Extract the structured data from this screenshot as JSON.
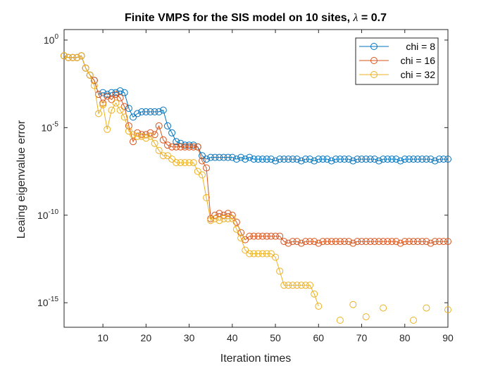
{
  "chart_data": {
    "type": "line",
    "title": "Finite VMPS for the SIS model on 10 sites, λ = 0.7",
    "title_parts": {
      "prefix": "Finite VMPS for the SIS model on 10 sites, ",
      "symbol": "λ",
      "suffix": " = 0.7"
    },
    "xlabel": "Iteration times",
    "ylabel": "Leaing eigenvalue error",
    "xlim": [
      1,
      90
    ],
    "ylim_log10": [
      -16.4,
      0.6
    ],
    "yscale": "log",
    "grid": false,
    "legend_position": "top-right",
    "xticks": [
      10,
      20,
      30,
      40,
      50,
      60,
      70,
      80,
      90
    ],
    "xtick_labels": [
      "10",
      "20",
      "30",
      "40",
      "50",
      "60",
      "70",
      "80",
      "90"
    ],
    "yticks_log10": [
      0,
      -5,
      -10,
      -15
    ],
    "ytick_labels": [
      {
        "base": "10",
        "exp": "0"
      },
      {
        "base": "10",
        "exp": "-5"
      },
      {
        "base": "10",
        "exp": "-10"
      },
      {
        "base": "10",
        "exp": "-15"
      }
    ],
    "series": [
      {
        "name": "chi = 8",
        "color": "#0072BD",
        "x": [
          1,
          2,
          3,
          4,
          5,
          6,
          7,
          8,
          9,
          10,
          11,
          12,
          13,
          14,
          15,
          16,
          17,
          18,
          19,
          20,
          21,
          22,
          23,
          24,
          25,
          26,
          27,
          28,
          29,
          30,
          31,
          32,
          33,
          34,
          35,
          36,
          37,
          38,
          39,
          40,
          41,
          42,
          43,
          44,
          45,
          46,
          47,
          48,
          49,
          50,
          51,
          52,
          53,
          54,
          55,
          56,
          57,
          58,
          59,
          60,
          61,
          62,
          63,
          64,
          65,
          66,
          67,
          68,
          69,
          70,
          71,
          72,
          73,
          74,
          75,
          76,
          77,
          78,
          79,
          80,
          81,
          82,
          83,
          84,
          85,
          86,
          87,
          88,
          89,
          90
        ],
        "log10_y": [
          -0.9,
          -1.0,
          -1.0,
          -1.0,
          -0.9,
          -1.6,
          -2.0,
          -2.3,
          -3.1,
          -3.0,
          -3.1,
          -3.0,
          -3.0,
          -2.9,
          -3.0,
          -3.9,
          -4.4,
          -4.2,
          -4.1,
          -4.1,
          -4.1,
          -4.1,
          -4.1,
          -4.0,
          -4.9,
          -5.3,
          -5.8,
          -5.9,
          -6.0,
          -6.0,
          -6.0,
          -6.1,
          -6.6,
          -6.8,
          -6.7,
          -6.7,
          -6.7,
          -6.7,
          -6.7,
          -6.7,
          -6.8,
          -6.7,
          -6.8,
          -6.7,
          -6.8,
          -6.8,
          -6.8,
          -6.8,
          -6.8,
          -6.9,
          -6.8,
          -6.8,
          -6.8,
          -6.8,
          -6.8,
          -6.9,
          -6.8,
          -6.8,
          -6.9,
          -6.8,
          -6.8,
          -6.8,
          -6.9,
          -6.8,
          -6.8,
          -6.8,
          -6.8,
          -6.9,
          -6.8,
          -6.8,
          -6.8,
          -6.8,
          -6.8,
          -6.9,
          -6.8,
          -6.8,
          -6.8,
          -6.8,
          -6.9,
          -6.8,
          -6.8,
          -6.8,
          -6.8,
          -6.8,
          -6.8,
          -6.8,
          -6.9,
          -6.8,
          -6.8,
          -6.8
        ]
      },
      {
        "name": "chi = 16",
        "color": "#D95319",
        "x": [
          1,
          2,
          3,
          4,
          5,
          6,
          7,
          8,
          9,
          10,
          11,
          12,
          13,
          14,
          15,
          16,
          17,
          18,
          19,
          20,
          21,
          22,
          23,
          24,
          25,
          26,
          27,
          28,
          29,
          30,
          31,
          32,
          33,
          34,
          35,
          36,
          37,
          38,
          39,
          40,
          41,
          42,
          43,
          44,
          45,
          46,
          47,
          48,
          49,
          50,
          51,
          52,
          53,
          54,
          55,
          56,
          57,
          58,
          59,
          60,
          61,
          62,
          63,
          64,
          65,
          66,
          67,
          68,
          69,
          70,
          71,
          72,
          73,
          74,
          75,
          76,
          77,
          78,
          79,
          80,
          81,
          82,
          83,
          84,
          85,
          86,
          87,
          88,
          89,
          90
        ],
        "log10_y": [
          -0.9,
          -1.0,
          -1.0,
          -1.0,
          -0.9,
          -1.6,
          -2.0,
          -2.3,
          -3.1,
          -3.6,
          -3.2,
          -3.4,
          -3.1,
          -3.3,
          -3.8,
          -4.9,
          -5.8,
          -5.3,
          -5.4,
          -5.4,
          -5.3,
          -5.4,
          -4.9,
          -5.7,
          -6.0,
          -6.1,
          -6.1,
          -6.1,
          -6.1,
          -6.1,
          -6.1,
          -6.1,
          -6.9,
          -7.3,
          -10.2,
          -10.0,
          -9.9,
          -10.0,
          -9.9,
          -10.0,
          -10.4,
          -11.0,
          -11.4,
          -11.2,
          -11.2,
          -11.2,
          -11.2,
          -11.2,
          -11.2,
          -11.2,
          -11.2,
          -11.5,
          -11.6,
          -11.5,
          -11.5,
          -11.6,
          -11.5,
          -11.5,
          -11.5,
          -11.6,
          -11.5,
          -11.5,
          -11.5,
          -11.5,
          -11.5,
          -11.5,
          -11.5,
          -11.6,
          -11.5,
          -11.5,
          -11.5,
          -11.5,
          -11.5,
          -11.5,
          -11.5,
          -11.5,
          -11.5,
          -11.5,
          -11.6,
          -11.5,
          -11.5,
          -11.5,
          -11.5,
          -11.5,
          -11.5,
          -11.6,
          -11.5,
          -11.5,
          -11.5,
          -11.5
        ]
      },
      {
        "name": "chi = 32",
        "color": "#EDB120",
        "x": [
          1,
          2,
          3,
          4,
          5,
          6,
          7,
          8,
          9,
          10,
          11,
          12,
          13,
          14,
          15,
          16,
          17,
          18,
          19,
          20,
          21,
          22,
          23,
          24,
          25,
          26,
          27,
          28,
          29,
          30,
          31,
          32,
          33,
          34,
          35,
          36,
          37,
          38,
          39,
          40,
          41,
          42,
          43,
          44,
          45,
          46,
          47,
          48,
          49,
          50,
          51,
          52,
          53,
          54,
          55,
          56,
          57,
          58,
          59,
          60,
          65,
          68,
          71,
          75,
          82,
          85,
          90
        ],
        "log10_y": [
          -0.9,
          -1.0,
          -1.0,
          -1.0,
          -0.9,
          -1.6,
          -2.0,
          -2.6,
          -4.2,
          -3.7,
          -5.1,
          -4.0,
          -3.6,
          -4.0,
          -4.4,
          -5.2,
          -5.4,
          -5.5,
          -5.5,
          -5.6,
          -5.5,
          -5.9,
          -6.3,
          -6.6,
          -6.6,
          -6.8,
          -7.0,
          -7.0,
          -7.0,
          -7.0,
          -7.0,
          -7.5,
          -7.7,
          -9.0,
          -10.3,
          -10.2,
          -10.3,
          -10.2,
          -10.2,
          -10.2,
          -10.8,
          -11.3,
          -12.0,
          -12.2,
          -12.2,
          -12.2,
          -12.2,
          -12.2,
          -12.2,
          -12.4,
          -13.2,
          -14.0,
          -14.0,
          -14.0,
          -14.0,
          -14.0,
          -14.0,
          -14.0,
          -14.5,
          -15.2,
          -16.0,
          -15.1,
          -15.8,
          -15.3,
          -16.0,
          -15.3,
          -15.4
        ]
      }
    ]
  }
}
